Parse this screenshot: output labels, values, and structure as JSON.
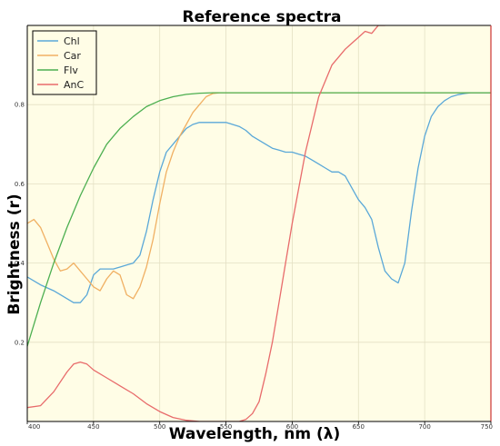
{
  "chart_data": {
    "type": "line",
    "title": "Reference spectra",
    "xlabel": "Wavelength, nm (λ)",
    "ylabel": "Brightness (r)",
    "xlim": [
      400,
      750
    ],
    "ylim": [
      0.0,
      1.0
    ],
    "x_ticks": [
      400,
      450,
      500,
      550,
      600,
      650,
      700,
      750
    ],
    "y_ticks": [
      0.2,
      0.4,
      0.6,
      0.8
    ],
    "grid": true,
    "legend_position": "top-left",
    "plot_background": "#fffde6",
    "grid_color": "#e4e0c4",
    "series": [
      {
        "name": "Chl",
        "color": "#5aa8d8",
        "x": [
          400,
          410,
          420,
          430,
          435,
          440,
          445,
          450,
          455,
          460,
          465,
          470,
          475,
          480,
          485,
          490,
          495,
          500,
          505,
          510,
          515,
          520,
          525,
          530,
          535,
          540,
          545,
          550,
          555,
          560,
          565,
          570,
          575,
          580,
          585,
          590,
          595,
          600,
          605,
          610,
          615,
          620,
          625,
          630,
          635,
          640,
          645,
          650,
          655,
          660,
          665,
          670,
          675,
          680,
          685,
          690,
          695,
          700,
          705,
          710,
          715,
          720,
          725,
          730,
          735,
          740,
          745,
          750
        ],
        "y": [
          0.365,
          0.345,
          0.33,
          0.31,
          0.3,
          0.3,
          0.32,
          0.37,
          0.385,
          0.385,
          0.385,
          0.39,
          0.395,
          0.4,
          0.42,
          0.48,
          0.56,
          0.63,
          0.68,
          0.7,
          0.72,
          0.74,
          0.75,
          0.755,
          0.755,
          0.755,
          0.755,
          0.755,
          0.75,
          0.745,
          0.735,
          0.72,
          0.71,
          0.7,
          0.69,
          0.685,
          0.68,
          0.68,
          0.675,
          0.67,
          0.66,
          0.65,
          0.64,
          0.63,
          0.63,
          0.62,
          0.59,
          0.56,
          0.54,
          0.51,
          0.44,
          0.38,
          0.36,
          0.35,
          0.4,
          0.53,
          0.64,
          0.72,
          0.77,
          0.795,
          0.81,
          0.82,
          0.825,
          0.828,
          0.83,
          0.83,
          0.83,
          0.83
        ]
      },
      {
        "name": "Car",
        "color": "#f0b063",
        "x": [
          400,
          405,
          410,
          415,
          420,
          425,
          430,
          435,
          440,
          445,
          450,
          455,
          460,
          465,
          470,
          475,
          480,
          485,
          490,
          495,
          500,
          505,
          510,
          515,
          520,
          525,
          530,
          535,
          540,
          545,
          550,
          560,
          570,
          580,
          590,
          600,
          650,
          700,
          750
        ],
        "y": [
          0.5,
          0.51,
          0.49,
          0.45,
          0.41,
          0.38,
          0.385,
          0.4,
          0.38,
          0.36,
          0.34,
          0.33,
          0.36,
          0.38,
          0.37,
          0.32,
          0.31,
          0.34,
          0.39,
          0.46,
          0.55,
          0.63,
          0.68,
          0.72,
          0.75,
          0.78,
          0.8,
          0.82,
          0.828,
          0.83,
          0.83,
          0.83,
          0.83,
          0.83,
          0.83,
          0.83,
          0.83,
          0.83,
          0.83
        ]
      },
      {
        "name": "Flv",
        "color": "#4caf50",
        "x": [
          400,
          410,
          420,
          430,
          440,
          450,
          460,
          470,
          480,
          490,
          500,
          510,
          520,
          530,
          540,
          550,
          600,
          650,
          700,
          750
        ],
        "y": [
          0.19,
          0.3,
          0.4,
          0.49,
          0.57,
          0.64,
          0.7,
          0.74,
          0.77,
          0.795,
          0.81,
          0.82,
          0.826,
          0.829,
          0.83,
          0.83,
          0.83,
          0.83,
          0.83,
          0.83
        ]
      },
      {
        "name": "AnC",
        "color": "#e86b6b",
        "x": [
          400,
          410,
          420,
          430,
          435,
          440,
          445,
          450,
          460,
          470,
          480,
          490,
          500,
          510,
          520,
          530,
          540,
          550,
          560,
          565,
          570,
          575,
          580,
          585,
          590,
          595,
          600,
          605,
          610,
          615,
          620,
          625,
          630,
          635,
          640,
          645,
          650,
          655,
          660,
          665,
          670
        ],
        "y": [
          0.035,
          0.04,
          0.075,
          0.125,
          0.145,
          0.15,
          0.145,
          0.13,
          0.11,
          0.09,
          0.07,
          0.045,
          0.025,
          0.01,
          0.003,
          0.0,
          0.0,
          0.0,
          0.0,
          0.005,
          0.02,
          0.05,
          0.12,
          0.2,
          0.3,
          0.4,
          0.5,
          0.59,
          0.68,
          0.75,
          0.82,
          0.86,
          0.9,
          0.92,
          0.94,
          0.955,
          0.97,
          0.985,
          0.98,
          1.0,
          1.0
        ]
      }
    ]
  }
}
